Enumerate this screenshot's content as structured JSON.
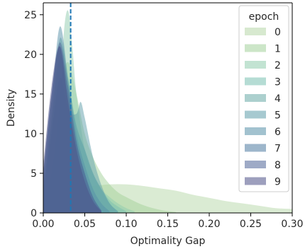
{
  "chart_data": {
    "type": "area",
    "xlabel": "Optimality Gap",
    "ylabel": "Density",
    "xlim": [
      0.0,
      0.3
    ],
    "ylim": [
      0,
      26.5
    ],
    "xticks": [
      "0.00",
      "0.05",
      "0.10",
      "0.15",
      "0.20",
      "0.25",
      "0.30"
    ],
    "xtick_values": [
      0.0,
      0.05,
      0.1,
      0.15,
      0.2,
      0.25,
      0.3
    ],
    "yticks": [
      "0",
      "5",
      "10",
      "15",
      "20",
      "25"
    ],
    "ytick_values": [
      0,
      5,
      10,
      15,
      20,
      25
    ],
    "grid": false,
    "legend": {
      "title": "epoch",
      "position": "top-right"
    },
    "reference_line": {
      "x": 0.033,
      "style": "dashed",
      "color": "#1f77b4"
    },
    "series": [
      {
        "name": "0",
        "color": "#b6d7a8",
        "x": [
          0.0,
          0.02,
          0.04,
          0.06,
          0.08,
          0.1,
          0.12,
          0.14,
          0.16,
          0.18,
          0.2,
          0.22,
          0.24,
          0.26,
          0.28,
          0.3
        ],
        "density": [
          2.6,
          2.9,
          3.2,
          3.4,
          3.6,
          3.6,
          3.4,
          3.1,
          2.8,
          2.3,
          1.9,
          1.5,
          1.2,
          0.9,
          0.6,
          0.5
        ]
      },
      {
        "name": "1",
        "color": "#a3d29a",
        "x": [
          0.0,
          0.01,
          0.02,
          0.03,
          0.04,
          0.05,
          0.06,
          0.07,
          0.08,
          0.09,
          0.1,
          0.12,
          0.14,
          0.16
        ],
        "density": [
          3.0,
          9.0,
          16.0,
          19.0,
          15.0,
          10.0,
          7.0,
          5.0,
          3.6,
          2.6,
          2.0,
          1.0,
          0.4,
          0.1
        ]
      },
      {
        "name": "2",
        "color": "#8fccad",
        "x": [
          0.0,
          0.01,
          0.02,
          0.025,
          0.03,
          0.035,
          0.04,
          0.05,
          0.06,
          0.07,
          0.08,
          0.09,
          0.1,
          0.11
        ],
        "density": [
          1.0,
          5.0,
          14.0,
          23.0,
          25.5,
          21.0,
          15.0,
          8.0,
          5.0,
          3.0,
          2.0,
          1.2,
          0.6,
          0.2
        ]
      },
      {
        "name": "3",
        "color": "#79c0b0",
        "x": [
          0.0,
          0.01,
          0.02,
          0.03,
          0.04,
          0.05,
          0.06,
          0.07,
          0.08,
          0.09,
          0.1
        ],
        "density": [
          3.0,
          11.0,
          19.5,
          16.0,
          11.0,
          8.0,
          5.0,
          3.0,
          1.6,
          0.8,
          0.2
        ]
      },
      {
        "name": "4",
        "color": "#68aaa6",
        "x": [
          0.0,
          0.01,
          0.02,
          0.03,
          0.04,
          0.05,
          0.06,
          0.07,
          0.08,
          0.09
        ],
        "density": [
          3.0,
          12.0,
          22.0,
          17.0,
          11.0,
          8.0,
          5.0,
          3.0,
          1.2,
          0.2
        ]
      },
      {
        "name": "5",
        "color": "#5d9daa",
        "x": [
          0.0,
          0.01,
          0.02,
          0.03,
          0.04,
          0.045,
          0.05,
          0.06,
          0.07,
          0.08,
          0.09
        ],
        "density": [
          2.5,
          10.0,
          17.0,
          13.0,
          12.5,
          14.0,
          12.0,
          7.0,
          3.5,
          1.2,
          0.2
        ]
      },
      {
        "name": "6",
        "color": "#558fa8",
        "x": [
          0.0,
          0.01,
          0.02,
          0.03,
          0.04,
          0.05,
          0.06,
          0.07,
          0.08
        ],
        "density": [
          4.0,
          14.0,
          23.5,
          17.0,
          10.0,
          6.0,
          3.0,
          1.2,
          0.2
        ]
      },
      {
        "name": "7",
        "color": "#4c7aa0",
        "x": [
          0.0,
          0.01,
          0.02,
          0.03,
          0.04,
          0.05,
          0.06,
          0.07
        ],
        "density": [
          5.0,
          15.0,
          21.0,
          15.0,
          9.0,
          5.0,
          2.0,
          0.3
        ]
      },
      {
        "name": "8",
        "color": "#4f6598",
        "x": [
          0.0,
          0.01,
          0.02,
          0.03,
          0.04,
          0.05,
          0.06,
          0.07
        ],
        "density": [
          5.0,
          15.0,
          21.5,
          16.0,
          9.0,
          5.0,
          2.0,
          0.3
        ]
      },
      {
        "name": "9",
        "color": "#4c5087",
        "x": [
          0.0,
          0.01,
          0.02,
          0.03,
          0.04,
          0.05,
          0.06,
          0.07
        ],
        "density": [
          6.0,
          16.0,
          21.0,
          14.0,
          8.0,
          4.0,
          1.5,
          0.2
        ]
      }
    ]
  }
}
